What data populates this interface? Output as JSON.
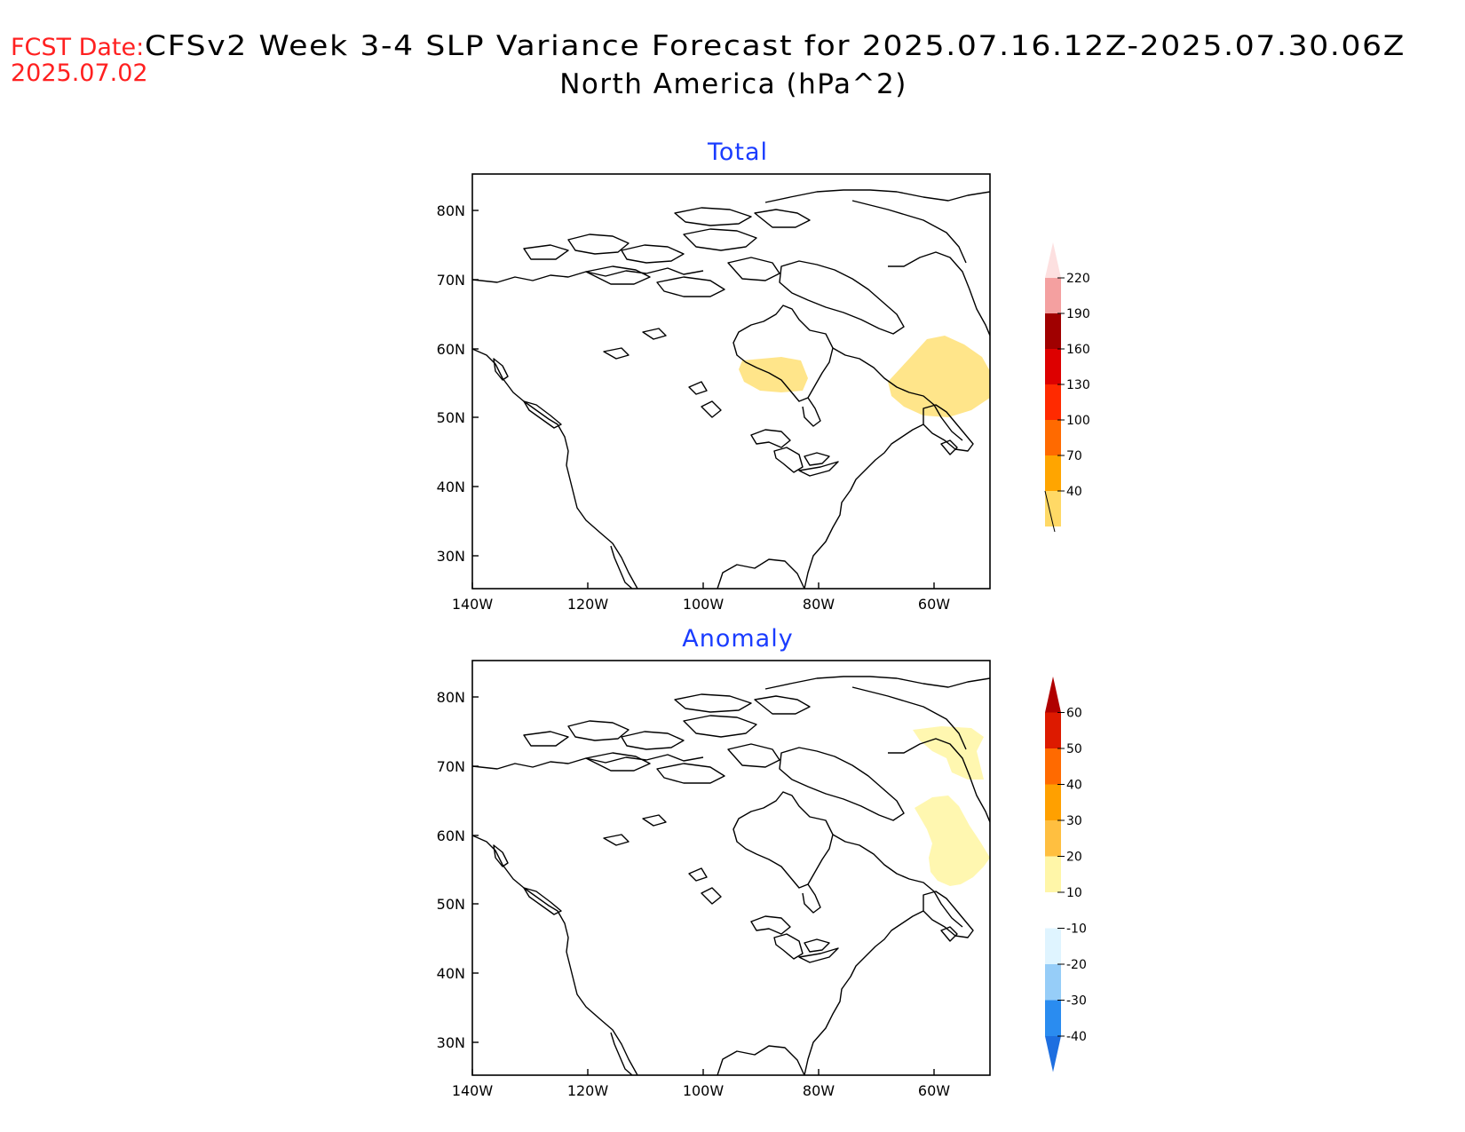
{
  "header": {
    "fcst_label": "FCST Date:",
    "fcst_date": "2025.07.02",
    "title_line1": "CFSv2 Week 3-4 SLP Variance Forecast for 2025.07.16.12Z-2025.07.30.06Z",
    "title_line2": "North America (hPa^2)"
  },
  "axes": {
    "lat_labels": [
      "80N",
      "70N",
      "60N",
      "50N",
      "40N",
      "30N"
    ],
    "lon_labels": [
      "140W",
      "120W",
      "100W",
      "80W",
      "60W"
    ]
  },
  "panels": [
    {
      "title": "Total",
      "colorbar": {
        "levels": [
          "40",
          "70",
          "100",
          "130",
          "160",
          "190",
          "220"
        ],
        "colors": [
          "#ffd966",
          "#ffa500",
          "#ff6a00",
          "#ff2a00",
          "#dd0000",
          "#a00000",
          "#f4a0a0",
          "#fde0e0"
        ]
      },
      "shaded_regions": [
        {
          "region": "Hudson Bay south",
          "color": "#ffe58a"
        },
        {
          "region": "Labrador / Quebec east",
          "color": "#ffe58a"
        }
      ]
    },
    {
      "title": "Anomaly",
      "colorbar": {
        "levels": [
          "-40",
          "-30",
          "-20",
          "-10",
          "10",
          "20",
          "30",
          "40",
          "50",
          "60"
        ],
        "colors": [
          "#1e6fe0",
          "#2a8cf0",
          "#96cdf8",
          "#dff4ff",
          "#ffffff",
          "#fff6a8",
          "#ffbf40",
          "#ffa000",
          "#ff6a00",
          "#dd1a00",
          "#b00000"
        ]
      },
      "shaded_regions": [
        {
          "region": "Baffin Bay",
          "color": "#fff7b0"
        },
        {
          "region": "Labrador coast",
          "color": "#fff7b0"
        }
      ]
    }
  ]
}
